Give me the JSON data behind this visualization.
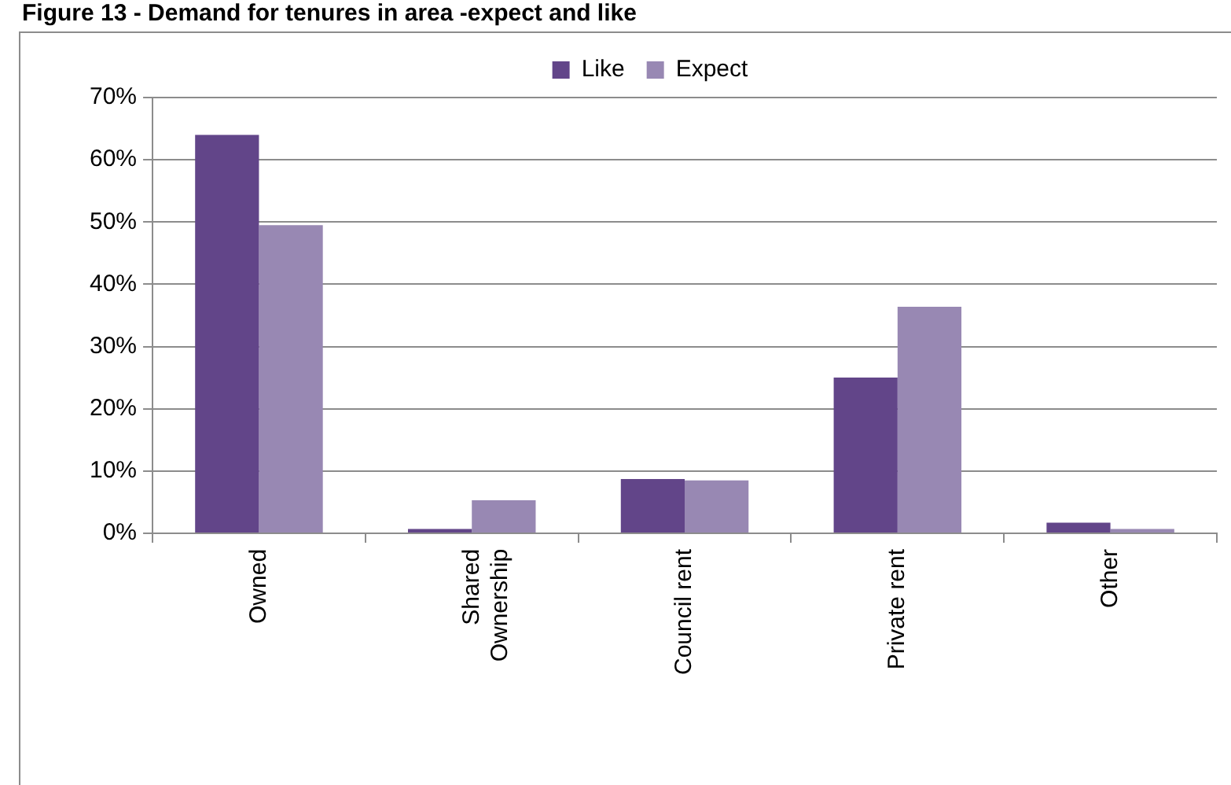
{
  "chart_data": {
    "type": "bar",
    "title": "Figure 13 - Demand for tenures in area -expect and like",
    "categories": [
      "Owned",
      "Shared Ownership",
      "Council rent",
      "Private rent",
      "Other"
    ],
    "series": [
      {
        "name": "Like",
        "color": "#624589",
        "values": [
          64,
          0.7,
          8.7,
          25,
          1.7
        ]
      },
      {
        "name": "Expect",
        "color": "#9888b3",
        "values": [
          49.5,
          5.3,
          8.5,
          36.4,
          0.7
        ]
      }
    ],
    "ylim": [
      0,
      70
    ],
    "yticks": [
      {
        "value": 0,
        "label": "0%"
      },
      {
        "value": 10,
        "label": "10%"
      },
      {
        "value": 20,
        "label": "20%"
      },
      {
        "value": 30,
        "label": "30%"
      },
      {
        "value": 40,
        "label": "40%"
      },
      {
        "value": 50,
        "label": "50%"
      },
      {
        "value": 60,
        "label": "60%"
      },
      {
        "value": 70,
        "label": "70%"
      }
    ],
    "grid": "y",
    "legend": "top"
  }
}
